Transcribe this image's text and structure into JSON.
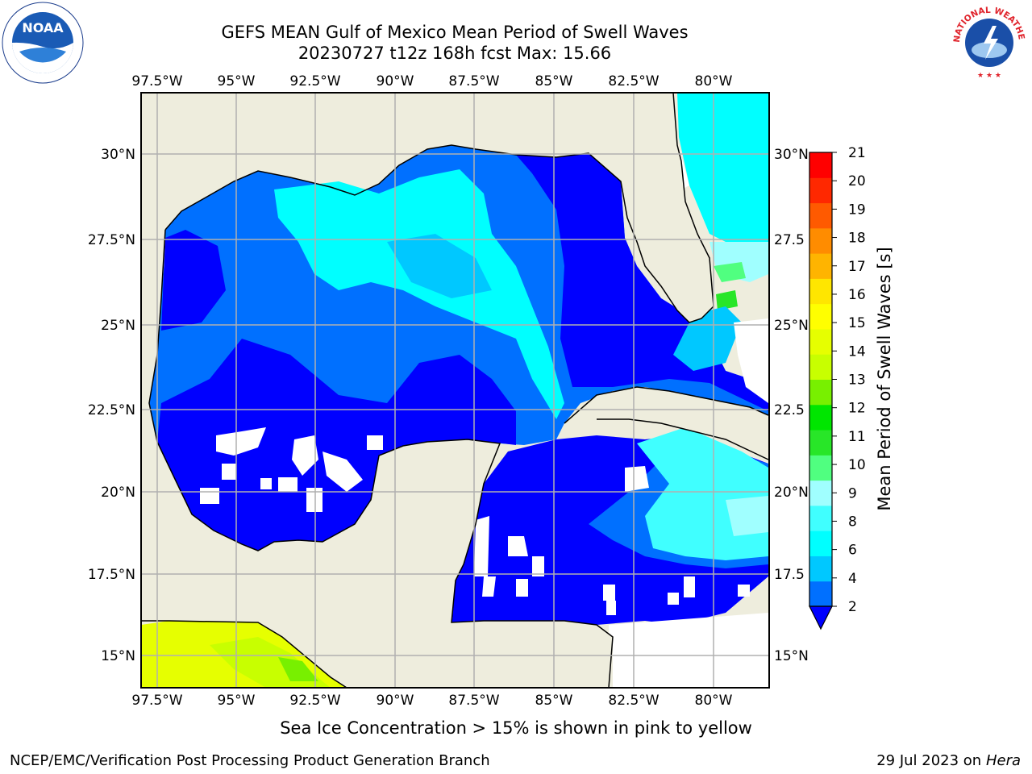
{
  "title_line1": "GEFS MEAN Gulf of Mexico Mean Period of Swell Waves",
  "title_line2": "20230727 t12z 168h fcst   Max: 15.66",
  "map": {
    "lon_labels": [
      "97.5°W",
      "95°W",
      "92.5°W",
      "90°W",
      "87.5°W",
      "85°W",
      "82.5°W",
      "80°W"
    ],
    "lat_labels_left": [
      "30°N",
      "27.5°N",
      "25°N",
      "22.5°N",
      "20°N",
      "17.5°N",
      "15°N"
    ],
    "lat_labels_right": [
      "30°N",
      "27.5",
      "25°N",
      "22.5",
      "20°N",
      "17.5",
      "15°N"
    ]
  },
  "colorbar": {
    "label": "Mean Period of Swell Waves [s]",
    "ticks": [
      "2",
      "4",
      "6",
      "8",
      "9",
      "10",
      "11",
      "12",
      "13",
      "14",
      "15",
      "16",
      "17",
      "18",
      "19",
      "20",
      "21"
    ],
    "colors": [
      "#0070ff",
      "#00c8ff",
      "#00ffff",
      "#40ffff",
      "#a0ffff",
      "#50ff80",
      "#28e628",
      "#00e600",
      "#78f000",
      "#c8ff00",
      "#e6ff00",
      "#ffff00",
      "#ffe600",
      "#ffb400",
      "#ff8c00",
      "#ff5a00",
      "#ff2800",
      "#ff0000"
    ],
    "extend_color": "#0000ff"
  },
  "footer": {
    "ice_note": "Sea Ice Concentration > 15% is shown in pink to yellow",
    "credit": "NCEP/EMC/Verification Post Processing Product Generation Branch",
    "date": "29 Jul 2023 on ",
    "host": "Hera"
  },
  "logos": {
    "left": "NOAA",
    "right": "NATIONAL WEATHER SERVICE"
  }
}
